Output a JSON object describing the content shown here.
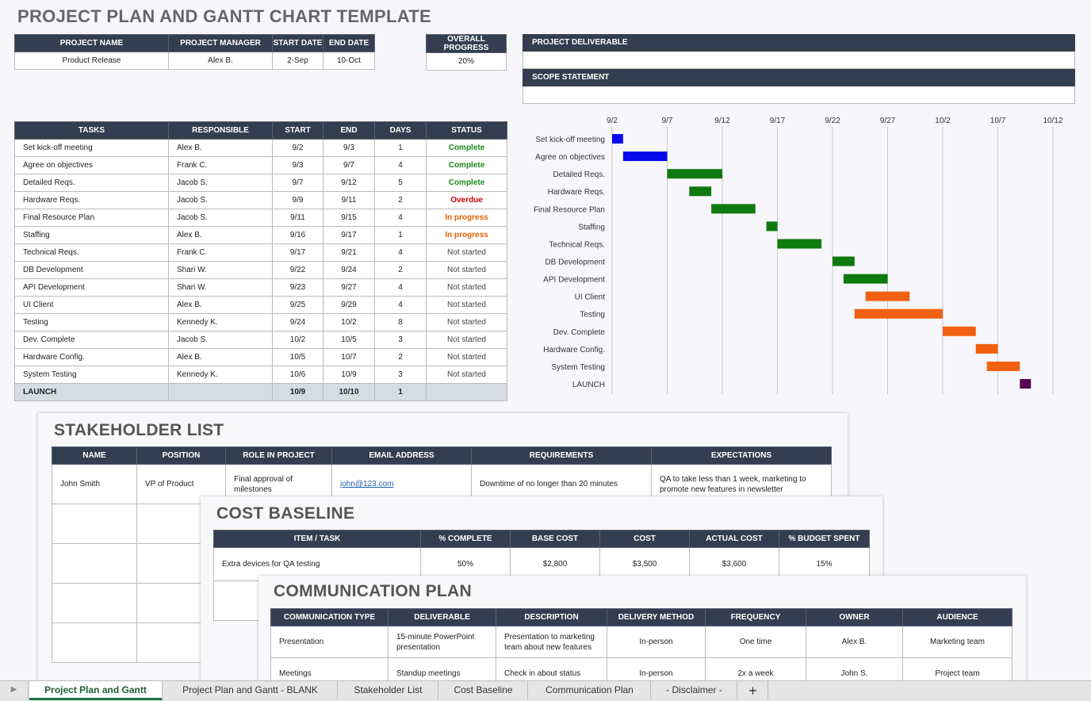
{
  "title": "PROJECT PLAN AND GANTT CHART TEMPLATE",
  "summary": {
    "headers": [
      "PROJECT NAME",
      "PROJECT MANAGER",
      "START DATE",
      "END DATE"
    ],
    "values": [
      "Product Release",
      "Alex B.",
      "2-Sep",
      "10-Oct"
    ],
    "progress_header": "OVERALL PROGRESS",
    "progress_value": "20%",
    "deliverable_header": "PROJECT DELIVERABLE",
    "scope_header": "SCOPE STATEMENT"
  },
  "tasks": {
    "headers": [
      "TASKS",
      "RESPONSIBLE",
      "START",
      "END",
      "DAYS",
      "STATUS"
    ],
    "rows": [
      {
        "task": "Set kick-off meeting",
        "resp": "Alex B.",
        "start": "9/2",
        "end": "9/3",
        "days": "1",
        "status": "Complete",
        "cls": "st-complete"
      },
      {
        "task": "Agree on objectives",
        "resp": "Frank C.",
        "start": "9/3",
        "end": "9/7",
        "days": "4",
        "status": "Complete",
        "cls": "st-complete"
      },
      {
        "task": "Detailed Reqs.",
        "resp": "Jacob S.",
        "start": "9/7",
        "end": "9/12",
        "days": "5",
        "status": "Complete",
        "cls": "st-complete"
      },
      {
        "task": "Hardware Reqs.",
        "resp": "Jacob S.",
        "start": "9/9",
        "end": "9/11",
        "days": "2",
        "status": "Overdue",
        "cls": "st-overdue"
      },
      {
        "task": "Final Resource Plan",
        "resp": "Jacob S.",
        "start": "9/11",
        "end": "9/15",
        "days": "4",
        "status": "In progress",
        "cls": "st-progress"
      },
      {
        "task": "Staffing",
        "resp": "Alex B.",
        "start": "9/16",
        "end": "9/17",
        "days": "1",
        "status": "In progress",
        "cls": "st-progress"
      },
      {
        "task": "Technical Reqs.",
        "resp": "Frank C.",
        "start": "9/17",
        "end": "9/21",
        "days": "4",
        "status": "Not started",
        "cls": "st-not"
      },
      {
        "task": "DB Development",
        "resp": "Shari W.",
        "start": "9/22",
        "end": "9/24",
        "days": "2",
        "status": "Not started",
        "cls": "st-not"
      },
      {
        "task": "API Development",
        "resp": "Shari W.",
        "start": "9/23",
        "end": "9/27",
        "days": "4",
        "status": "Not started",
        "cls": "st-not"
      },
      {
        "task": "UI Client",
        "resp": "Alex B.",
        "start": "9/25",
        "end": "9/29",
        "days": "4",
        "status": "Not started",
        "cls": "st-not"
      },
      {
        "task": "Testing",
        "resp": "Kennedy K.",
        "start": "9/24",
        "end": "10/2",
        "days": "8",
        "status": "Not started",
        "cls": "st-not"
      },
      {
        "task": "Dev. Complete",
        "resp": "Jacob S.",
        "start": "10/2",
        "end": "10/5",
        "days": "3",
        "status": "Not started",
        "cls": "st-not"
      },
      {
        "task": "Hardware Config.",
        "resp": "Alex B.",
        "start": "10/5",
        "end": "10/7",
        "days": "2",
        "status": "Not started",
        "cls": "st-not"
      },
      {
        "task": "System Testing",
        "resp": "Kennedy K.",
        "start": "10/6",
        "end": "10/9",
        "days": "3",
        "status": "Not started",
        "cls": "st-not"
      }
    ],
    "launch": {
      "task": "LAUNCH",
      "resp": "",
      "start": "10/9",
      "end": "10/10",
      "days": "1",
      "status": ""
    }
  },
  "chart_data": {
    "type": "bar",
    "orientation": "horizontal-gantt",
    "x_ticks": [
      "9/2",
      "9/7",
      "9/12",
      "9/17",
      "9/22",
      "9/27",
      "10/2",
      "10/7",
      "10/12"
    ],
    "x_range_days": [
      0,
      40
    ],
    "tasks": [
      {
        "label": "Set kick-off meeting",
        "start": 0,
        "duration": 1,
        "color": "#0a0aee"
      },
      {
        "label": "Agree on objectives",
        "start": 1,
        "duration": 4,
        "color": "#0a0aee"
      },
      {
        "label": "Detailed Reqs.",
        "start": 5,
        "duration": 5,
        "color": "#0f7a0f"
      },
      {
        "label": "Hardware Reqs.",
        "start": 7,
        "duration": 2,
        "color": "#0f7a0f"
      },
      {
        "label": "Final Resource Plan",
        "start": 9,
        "duration": 4,
        "color": "#0f7a0f"
      },
      {
        "label": "Staffing",
        "start": 14,
        "duration": 1,
        "color": "#0f7a0f"
      },
      {
        "label": "Technical Reqs.",
        "start": 15,
        "duration": 4,
        "color": "#0f7a0f"
      },
      {
        "label": "DB Development",
        "start": 20,
        "duration": 2,
        "color": "#0f7a0f"
      },
      {
        "label": "API Development",
        "start": 21,
        "duration": 4,
        "color": "#0f7a0f"
      },
      {
        "label": "UI Client",
        "start": 23,
        "duration": 4,
        "color": "#f06010"
      },
      {
        "label": "Testing",
        "start": 22,
        "duration": 8,
        "color": "#f06010"
      },
      {
        "label": "Dev. Complete",
        "start": 30,
        "duration": 3,
        "color": "#f06010"
      },
      {
        "label": "Hardware Config.",
        "start": 33,
        "duration": 2,
        "color": "#f06010"
      },
      {
        "label": "System Testing",
        "start": 34,
        "duration": 3,
        "color": "#f06010"
      },
      {
        "label": "LAUNCH",
        "start": 37,
        "duration": 1,
        "color": "#550055"
      }
    ]
  },
  "stakeholder": {
    "title": "STAKEHOLDER LIST",
    "headers": [
      "NAME",
      "POSITION",
      "ROLE IN PROJECT",
      "EMAIL ADDRESS",
      "REQUIREMENTS",
      "EXPECTATIONS"
    ],
    "row": [
      "John Smith",
      "VP of Product",
      "Final approval of milestones",
      "john@123.com",
      "Downtime of no longer than 20 minutes",
      "QA to take less than 1 week, marketing to promote new features in newsletter"
    ]
  },
  "cost": {
    "title": "COST BASELINE",
    "headers": [
      "ITEM / TASK",
      "% COMPLETE",
      "BASE COST",
      "COST",
      "ACTUAL COST",
      "% BUDGET SPENT"
    ],
    "row": [
      "Extra devices for QA testing",
      "50%",
      "$2,800",
      "$3,500",
      "$3,600",
      "15%"
    ]
  },
  "comm": {
    "title": "COMMUNICATION PLAN",
    "headers": [
      "COMMUNICATION TYPE",
      "DELIVERABLE",
      "DESCRIPTION",
      "DELIVERY METHOD",
      "FREQUENCY",
      "OWNER",
      "AUDIENCE"
    ],
    "rows": [
      [
        "Presentation",
        "15-minute PowerPoint presentation",
        "Presentation to marketing team about new features",
        "In-person",
        "One time",
        "Alex B.",
        "Marketing team"
      ],
      [
        "Meetings",
        "Standup meetings",
        "Check in about status",
        "In-person",
        "2x a week",
        "John S.",
        "Project team"
      ]
    ]
  },
  "sheet_tabs": [
    "Project Plan and Gantt",
    "Project Plan and Gantt - BLANK",
    "Stakeholder List",
    "Cost Baseline",
    "Communication Plan",
    "- Disclaimer -"
  ],
  "add_sheet": "+"
}
